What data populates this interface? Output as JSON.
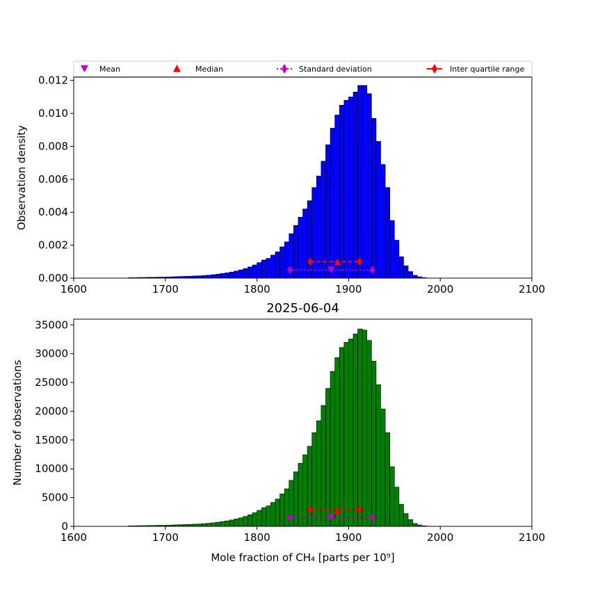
{
  "legend": {
    "items": [
      {
        "label": "Mean",
        "color": "#bf00bf",
        "marker": "triangle-down",
        "line": "none"
      },
      {
        "label": "Median",
        "color": "#ff0000",
        "marker": "triangle-up",
        "line": "none"
      },
      {
        "label": "Standard deviation",
        "color": "#bf00bf",
        "marker": "diamond",
        "line": "dotted"
      },
      {
        "label": "Inter quartile range",
        "color": "#ff0000",
        "marker": "diamond",
        "line": "solid"
      }
    ]
  },
  "chart_data": [
    {
      "type": "bar",
      "title": "",
      "xlabel": "",
      "ylabel": "Observation density",
      "xlim": [
        1600,
        2100
      ],
      "ylim": [
        0,
        0.0122
      ],
      "xticks": [
        1600,
        1700,
        1800,
        1900,
        2000,
        2100
      ],
      "xtick_labels": [
        "1600",
        "1700",
        "1800",
        "1900",
        "2000",
        "2100"
      ],
      "yticks": [
        0,
        0.002,
        0.004,
        0.006,
        0.008,
        0.01,
        0.012
      ],
      "ytick_labels": [
        "0.000",
        "0.002",
        "0.004",
        "0.006",
        "0.008",
        "0.010",
        "0.012"
      ],
      "bar_color": "#0000ff",
      "bin_start": 1660,
      "bin_width": 5,
      "values": [
        3e-05,
        3e-05,
        4e-05,
        4e-05,
        5e-05,
        5e-05,
        6e-05,
        6e-05,
        7e-05,
        8e-05,
        9e-05,
        0.0001,
        0.00011,
        0.00012,
        0.00013,
        0.00014,
        0.00016,
        0.00018,
        0.00021,
        0.00024,
        0.00028,
        0.00032,
        0.00037,
        0.00043,
        0.0005,
        0.00058,
        0.00068,
        0.0008,
        0.00094,
        0.0011,
        0.0012,
        0.0014,
        0.0016,
        0.0019,
        0.0022,
        0.0027,
        0.0032,
        0.0037,
        0.0042,
        0.0047,
        0.0055,
        0.0062,
        0.0071,
        0.0081,
        0.0091,
        0.0099,
        0.0105,
        0.0108,
        0.011,
        0.0113,
        0.0117,
        0.0117,
        0.0112,
        0.0097,
        0.0083,
        0.0069,
        0.0055,
        0.0035,
        0.0023,
        0.0013,
        0.00075,
        0.0004,
        0.00017,
        8e-05,
        3e-05,
        1e-05
      ],
      "mean": 1881,
      "median": 1888,
      "std_range": [
        1836,
        1926
      ],
      "iqr_range": [
        1858,
        1912
      ],
      "mean_marker_y": 0.0005,
      "median_marker_y": 0.00098,
      "std_marker_y": 0.0005,
      "iqr_marker_y": 0.001
    },
    {
      "type": "bar",
      "title": "2025-06-04",
      "xlabel": "Mole fraction of CH₄ [parts per 10⁹]",
      "ylabel": "Number of observations",
      "xlim": [
        1600,
        2100
      ],
      "ylim": [
        0,
        36000
      ],
      "xticks": [
        1600,
        1700,
        1800,
        1900,
        2000,
        2100
      ],
      "xtick_labels": [
        "1600",
        "1700",
        "1800",
        "1900",
        "2000",
        "2100"
      ],
      "yticks": [
        0,
        5000,
        10000,
        15000,
        20000,
        25000,
        30000,
        35000
      ],
      "ytick_labels": [
        "0",
        "5000",
        "10000",
        "15000",
        "20000",
        "25000",
        "30000",
        "35000"
      ],
      "bar_color": "#008000",
      "bin_start": 1660,
      "bin_width": 5,
      "values": [
        90,
        90,
        120,
        120,
        150,
        150,
        180,
        180,
        200,
        230,
        260,
        290,
        320,
        350,
        380,
        410,
        470,
        530,
        620,
        710,
        830,
        950,
        1100,
        1280,
        1480,
        1720,
        2010,
        2360,
        2780,
        3250,
        3560,
        4150,
        4740,
        5630,
        6520,
        7990,
        9470,
        10950,
        12430,
        13910,
        16280,
        18350,
        21010,
        23970,
        26930,
        29300,
        31080,
        31960,
        32550,
        33440,
        34300,
        34100,
        32300,
        28700,
        24600,
        20400,
        16280,
        10360,
        6810,
        3850,
        2220,
        1180,
        500,
        240,
        90,
        30
      ],
      "mean": 1881,
      "median": 1888,
      "std_range": [
        1836,
        1926
      ],
      "iqr_range": [
        1858,
        1912
      ],
      "mean_marker_y": 1500,
      "median_marker_y": 2800,
      "std_marker_y": 1500,
      "iqr_marker_y": 2900
    }
  ]
}
